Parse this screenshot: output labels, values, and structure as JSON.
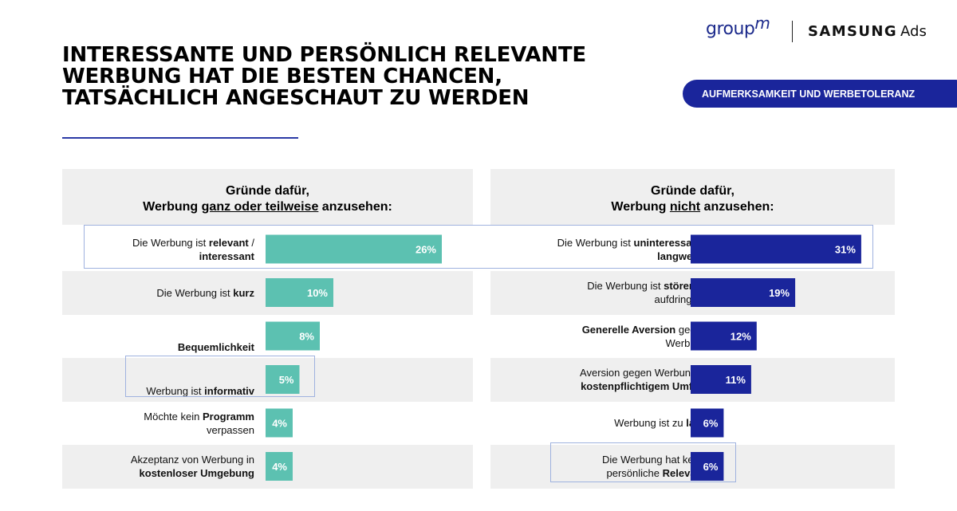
{
  "header": {
    "title_lines": [
      "INTERESSANTE UND PERSÖNLICH RELEVANTE",
      "WERBUNG HAT DIE BESTEN CHANCEN,",
      "TATSÄCHLICH ANGESCHAUT ZU WERDEN"
    ],
    "logo_groupm_text": "group",
    "logo_groupm_m": "m",
    "logo_samsung": "SAMSUNG",
    "logo_ads": "Ads",
    "badge": "AUFMERKSAMKEIT UND WERBETOLERANZ"
  },
  "colors": {
    "accent_blue": "#1a259b",
    "bar_left": "#5cc1b1",
    "bar_right": "#1a259b",
    "panel_bg": "#efefef"
  },
  "left_panel": {
    "heading_line1": "Gründe dafür,",
    "heading_pre": "Werbung ",
    "heading_underlined": "ganz oder teilweise",
    "heading_post": " anzusehen:"
  },
  "right_panel": {
    "heading_line1": "Gründe dafür,",
    "heading_pre": "Werbung ",
    "heading_underlined": "nicht",
    "heading_post": " anzusehen:"
  },
  "chart_data": [
    {
      "type": "bar",
      "orientation": "horizontal",
      "categories": [
        "Die Werbung ist relevant / interessant",
        "Die Werbung ist kurz",
        "Bequemlichkeit",
        "Werbung ist informativ",
        "Möchte kein Programm verpassen",
        "Akzeptanz von Werbung in kostenloser Umgebung"
      ],
      "values": [
        26,
        10,
        8,
        5,
        4,
        4
      ],
      "value_labels": [
        "26%",
        "10%",
        "8%",
        "5%",
        "4%",
        "4%"
      ],
      "unit": "%",
      "label_lines": [
        [
          [
            {
              "t": "Die Werbung ist ",
              "b": false
            },
            {
              "t": "relevant",
              "b": true
            },
            {
              "t": " /",
              "b": false
            }
          ],
          [
            {
              "t": "interessant",
              "b": true
            }
          ]
        ],
        [
          [
            {
              "t": "Die Werbung ist ",
              "b": false
            },
            {
              "t": "kurz",
              "b": true
            }
          ]
        ],
        [
          [
            {
              "t": "Bequemlichkeit",
              "b": true
            }
          ]
        ],
        [
          [
            {
              "t": "Werbung ist ",
              "b": false
            },
            {
              "t": "informativ",
              "b": true
            }
          ]
        ],
        [
          [
            {
              "t": "Möchte kein ",
              "b": false
            },
            {
              "t": "Programm",
              "b": true
            }
          ],
          [
            {
              "t": "verpassen",
              "b": false
            }
          ]
        ],
        [
          [
            {
              "t": "Akzeptanz von Werbung in",
              "b": false
            }
          ],
          [
            {
              "t": "kostenloser Umgebung",
              "b": true
            }
          ]
        ]
      ],
      "label_valign": [
        "center",
        "center",
        "bottom",
        "bottom",
        "center",
        "center"
      ],
      "color": "#5cc1b1",
      "highlighted_rows": [
        0,
        3
      ]
    },
    {
      "type": "bar",
      "orientation": "horizontal",
      "categories": [
        "Die Werbung ist uninteressant / langweilig",
        "Die Werbung ist störend / aufdringlich",
        "Generelle Aversion gegen Werbung",
        "Aversion gegen Werbung in kostenpflichtigem Umfeld",
        "Werbung ist zu lang",
        "Die Werbung hat keine persönliche Relevanz"
      ],
      "values": [
        31,
        19,
        12,
        11,
        6,
        6
      ],
      "value_labels": [
        "31%",
        "19%",
        "12%",
        "11%",
        "6%",
        "6%"
      ],
      "unit": "%",
      "label_lines": [
        [
          [
            {
              "t": "Die Werbung ist ",
              "b": false
            },
            {
              "t": "uninteressant",
              "b": true
            },
            {
              "t": " /",
              "b": false
            }
          ],
          [
            {
              "t": "langweilig",
              "b": true
            }
          ]
        ],
        [
          [
            {
              "t": "Die Werbung ist ",
              "b": false
            },
            {
              "t": "störend",
              "b": true
            },
            {
              "t": " /",
              "b": false
            }
          ],
          [
            {
              "t": "aufdringlich",
              "b": false
            }
          ]
        ],
        [
          [
            {
              "t": "Generelle Aversion",
              "b": true
            },
            {
              "t": " gegen",
              "b": false
            }
          ],
          [
            {
              "t": "Werbung",
              "b": false
            }
          ]
        ],
        [
          [
            {
              "t": "Aversion gegen Werbung in",
              "b": false
            }
          ],
          [
            {
              "t": "kostenpflichtigem Umfeld",
              "b": true
            }
          ]
        ],
        [
          [
            {
              "t": "Werbung ist zu ",
              "b": false
            },
            {
              "t": "lang",
              "b": true
            }
          ]
        ],
        [
          [
            {
              "t": "Die Werbung hat keine",
              "b": false
            }
          ],
          [
            {
              "t": "persönliche ",
              "b": false
            },
            {
              "t": "Relevanz",
              "b": true
            }
          ]
        ]
      ],
      "label_valign": [
        "center",
        "center",
        "center",
        "center",
        "center",
        "center"
      ],
      "color": "#1a259b",
      "highlighted_rows": [
        5
      ]
    }
  ]
}
